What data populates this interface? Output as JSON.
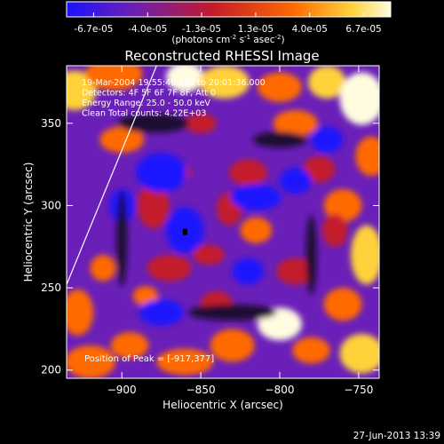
{
  "colorbar": {
    "ticks": [
      "-6.7e-05",
      "-4.0e-05",
      "-1.3e-05",
      "1.3e-05",
      "4.0e-05",
      "6.7e-05"
    ],
    "units_main": "(photons cm",
    "units_exp1": "-2",
    "units_mid": " s",
    "units_exp2": "-1",
    "units_end": " asec",
    "units_exp3": "-2",
    "units_close": ")",
    "colors": [
      "#1a12ff",
      "#6a1fb8",
      "#c41a2a",
      "#ff6a00",
      "#ffd23a",
      "#fffce0"
    ]
  },
  "chart_data": {
    "type": "heatmap",
    "title": "Reconstructed RHESSI Image",
    "xlabel": "Heliocentric X (arcsec)",
    "ylabel": "Heliocentric Y (arcsec)",
    "xlim": [
      -935,
      -737
    ],
    "ylim": [
      195,
      385
    ],
    "xticks": [
      -900,
      -850,
      -800,
      -750
    ],
    "xtick_labels": [
      "−900",
      "−850",
      "−800",
      "−750"
    ],
    "yticks": [
      200,
      250,
      300,
      350
    ],
    "ytick_labels": [
      "200",
      "250",
      "300",
      "350"
    ],
    "color_range": [
      -6.7e-05,
      6.7e-05
    ],
    "info_lines": [
      "19-Mar-2004 19:55:46.000 to 20:01:36.000",
      "Detectors: 4F 5F 6F 7F 8F, Att 0",
      "Energy Range: 25.0 - 50.0 keV",
      "Clean     Total counts: 4.22E+03"
    ],
    "peak_text": "Position of Peak = [-917,377]",
    "limb_points": [
      [
        -935,
        252
      ],
      [
        -878,
        385
      ]
    ]
  },
  "timestamp": "27-Jun-2013 13:39"
}
